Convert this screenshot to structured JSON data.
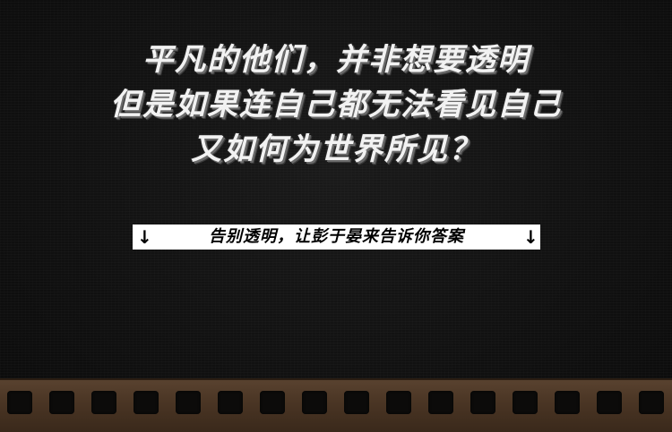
{
  "headline": {
    "lines": [
      "平凡的他们，并非想要透明",
      "但是如果连自己都无法看见自己",
      "又如何为世界所见？"
    ]
  },
  "cta": {
    "label": "告别透明，让彭于晏来告诉你答案",
    "arrow_left": "↓",
    "arrow_right": "↓"
  },
  "colors": {
    "background": "#111111",
    "headline_text": "#f2f2f2",
    "cta_background": "#ffffff",
    "cta_text": "#000000",
    "filmstrip": "#4a3524",
    "filmstrip_hole": "#0c0b0a"
  },
  "filmstrip": {
    "hole_count": 16
  }
}
